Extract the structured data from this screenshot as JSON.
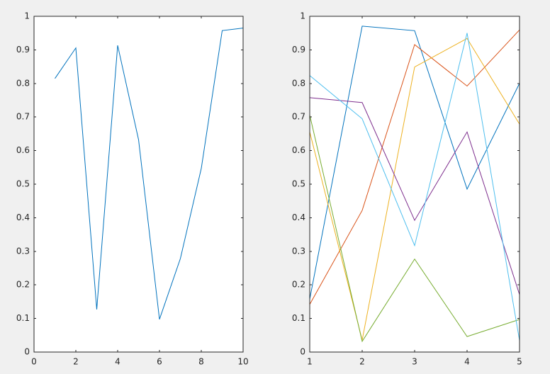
{
  "chart_data": [
    {
      "type": "line",
      "x": [
        1,
        2,
        3,
        4,
        5,
        6,
        7,
        8,
        9,
        10
      ],
      "values": [
        0.8147,
        0.9058,
        0.127,
        0.9134,
        0.6324,
        0.0975,
        0.2785,
        0.5469,
        0.9575,
        0.9649
      ],
      "color": "#0072bd",
      "xlim": [
        0,
        10
      ],
      "xticks": [
        0,
        2,
        4,
        6,
        8,
        10
      ],
      "ylim": [
        0,
        1
      ],
      "yticks": [
        0,
        0.1,
        0.2,
        0.3,
        0.4,
        0.5,
        0.6,
        0.7,
        0.8,
        0.9,
        1
      ]
    },
    {
      "type": "line",
      "x": [
        1,
        2,
        3,
        4,
        5
      ],
      "series": [
        {
          "color": "#0072bd",
          "values": [
            0.1576,
            0.9706,
            0.9572,
            0.4854,
            0.8003
          ]
        },
        {
          "color": "#d95319",
          "values": [
            0.1419,
            0.4218,
            0.9157,
            0.7922,
            0.9595
          ]
        },
        {
          "color": "#edb120",
          "values": [
            0.6557,
            0.0357,
            0.8491,
            0.934,
            0.6787
          ]
        },
        {
          "color": "#7e2f8e",
          "values": [
            0.7577,
            0.7431,
            0.3922,
            0.6555,
            0.1712
          ]
        },
        {
          "color": "#77ac30",
          "values": [
            0.706,
            0.0318,
            0.2769,
            0.0462,
            0.0971
          ]
        },
        {
          "color": "#4dbeee",
          "values": [
            0.8235,
            0.6948,
            0.3171,
            0.9502,
            0.0344
          ]
        }
      ],
      "xlim": [
        1,
        5
      ],
      "xticks": [
        1,
        2,
        3,
        4,
        5
      ],
      "ylim": [
        0,
        1
      ],
      "yticks": [
        0,
        0.1,
        0.2,
        0.3,
        0.4,
        0.5,
        0.6,
        0.7,
        0.8,
        0.9,
        1
      ]
    }
  ]
}
